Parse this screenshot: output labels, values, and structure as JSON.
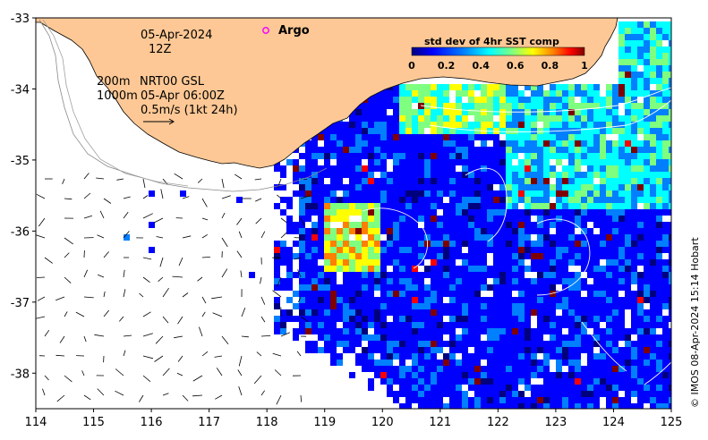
{
  "map": {
    "date": "05-Apr-2024",
    "hour": "12Z",
    "legend_argo": "Argo",
    "depth_200": "200m",
    "depth_1000": "1000m",
    "product": "NRT00 GSL",
    "product_time": "05-Apr 06:00Z",
    "vector_scale": "0.5m/s (1kt 24h)",
    "credit": "© IMOS 08-Apr-2024 15:14 Hobart"
  },
  "colorbar": {
    "title": "std dev of 4hr SST comp",
    "ticks": [
      "0",
      "0.2",
      "0.4",
      "0.6",
      "0.8",
      "1"
    ],
    "colors": [
      "#00007f",
      "#0000ff",
      "#007fff",
      "#00ffff",
      "#7fff7f",
      "#ffff00",
      "#ff7f00",
      "#ff0000",
      "#7f0000"
    ]
  },
  "axes": {
    "x_ticks": [
      "114",
      "115",
      "116",
      "117",
      "118",
      "119",
      "120",
      "121",
      "122",
      "123",
      "124",
      "125"
    ],
    "y_ticks": [
      "-33",
      "-34",
      "-35",
      "-36",
      "-37",
      "-38"
    ],
    "lon_range": [
      114,
      125
    ],
    "lat_range": [
      -38.5,
      -33
    ]
  },
  "colors": {
    "land": "#fdc895",
    "ocean_nodata": "#ffffff",
    "argo_marker": "#ff00ff"
  }
}
